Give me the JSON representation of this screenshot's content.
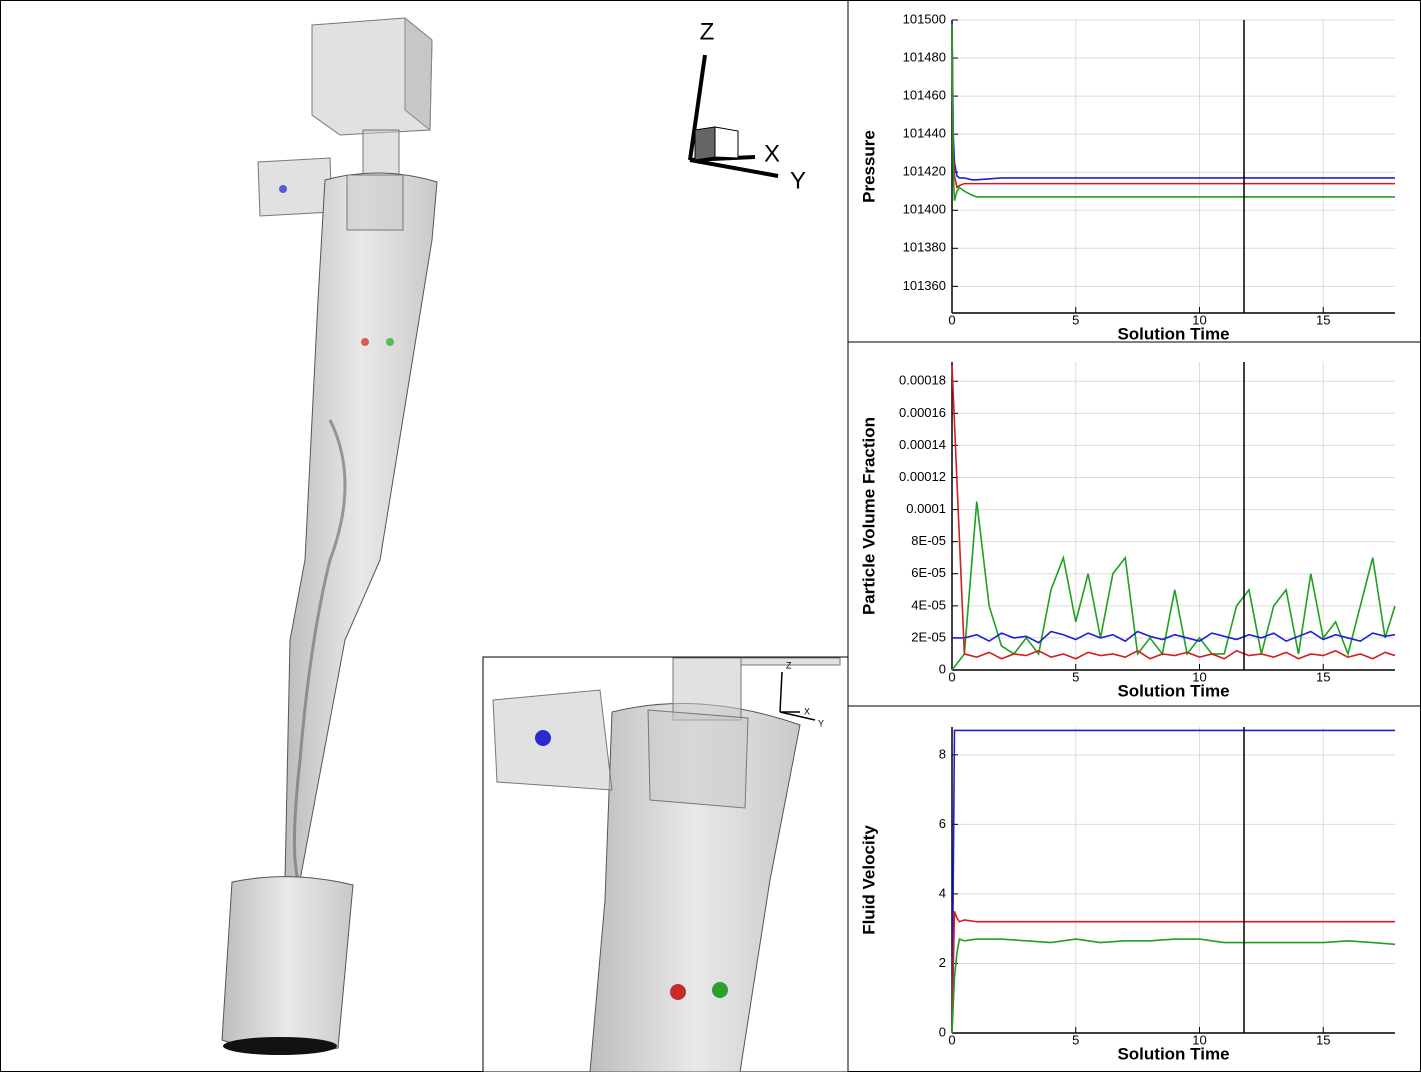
{
  "view_3d": {
    "axis_labels": [
      "Z",
      "X",
      "Y"
    ]
  },
  "chart_data": [
    {
      "type": "line",
      "ylabel": "Pressure",
      "xlabel": "Solution Time",
      "xlim": [
        0,
        17.9
      ],
      "xticks": [
        0,
        5,
        10,
        15
      ],
      "ylim": [
        101346,
        101500
      ],
      "yticks": [
        101360,
        101380,
        101400,
        101420,
        101440,
        101460,
        101480,
        101500
      ],
      "grid": true,
      "cursor_x": 11.8,
      "x": [
        0,
        0.05,
        0.1,
        0.2,
        0.3,
        0.5,
        0.8,
        1,
        2,
        3,
        4,
        5,
        6,
        7,
        8,
        9,
        10,
        11,
        12,
        13,
        14,
        15,
        16,
        17,
        17.9
      ],
      "series": [
        {
          "color": "#1f1fd0",
          "values": [
            101500,
            101440,
            101425,
            101418,
            101417,
            101417,
            101416,
            101416,
            101417,
            101417,
            101417,
            101417,
            101417,
            101417,
            101417,
            101417,
            101417,
            101417,
            101417,
            101417,
            101417,
            101417,
            101417,
            101417,
            101417
          ]
        },
        {
          "color": "#d01f1f",
          "values": [
            101495,
            101430,
            101418,
            101412,
            101413,
            101414,
            101414,
            101414,
            101414,
            101414,
            101414,
            101414,
            101414,
            101414,
            101414,
            101414,
            101414,
            101414,
            101414,
            101414,
            101414,
            101414,
            101414,
            101414,
            101414
          ]
        },
        {
          "color": "#1fa01f",
          "values": [
            101498,
            101420,
            101405,
            101410,
            101412,
            101410,
            101408,
            101407,
            101407,
            101407,
            101407,
            101407,
            101407,
            101407,
            101407,
            101407,
            101407,
            101407,
            101407,
            101407,
            101407,
            101407,
            101407,
            101407,
            101407
          ]
        }
      ]
    },
    {
      "type": "line",
      "ylabel": "Particle Volume Fraction",
      "xlabel": "Solution Time",
      "xlim": [
        0,
        17.9
      ],
      "xticks": [
        0,
        5,
        10,
        15
      ],
      "ylim": [
        0,
        0.000192
      ],
      "yticks": [
        0,
        {
          "value": 2e-05,
          "label": "2E-05"
        },
        {
          "value": 4e-05,
          "label": "4E-05"
        },
        {
          "value": 6e-05,
          "label": "6E-05"
        },
        {
          "value": 8e-05,
          "label": "8E-05"
        },
        0.0001,
        0.00012,
        0.00014,
        0.00016,
        0.00018
      ],
      "grid": true,
      "cursor_x": 11.8,
      "x": [
        0,
        0.5,
        1,
        1.5,
        2,
        2.5,
        3,
        3.5,
        4,
        4.5,
        5,
        5.5,
        6,
        6.5,
        7,
        7.5,
        8,
        8.5,
        9,
        9.5,
        10,
        10.5,
        11,
        11.5,
        12,
        12.5,
        13,
        13.5,
        14,
        14.5,
        15,
        15.5,
        16,
        16.5,
        17,
        17.5,
        17.9
      ],
      "series": [
        {
          "color": "#1fa01f",
          "values": [
            0,
            1e-05,
            0.000105,
            4e-05,
            1.5e-05,
            1e-05,
            2e-05,
            1e-05,
            5e-05,
            7e-05,
            3e-05,
            6e-05,
            2e-05,
            6e-05,
            7e-05,
            1e-05,
            2e-05,
            1e-05,
            5e-05,
            1e-05,
            2e-05,
            1e-05,
            1e-05,
            4e-05,
            5e-05,
            1e-05,
            4e-05,
            5e-05,
            1e-05,
            6e-05,
            2e-05,
            3e-05,
            1e-05,
            4e-05,
            7e-05,
            2e-05,
            4e-05
          ]
        },
        {
          "color": "#1f1fd0",
          "values": [
            2e-05,
            2e-05,
            2.2e-05,
            1.8e-05,
            2.3e-05,
            2e-05,
            2.1e-05,
            1.7e-05,
            2.4e-05,
            2.2e-05,
            1.9e-05,
            2.3e-05,
            2e-05,
            2.2e-05,
            1.8e-05,
            2.4e-05,
            2.1e-05,
            1.9e-05,
            2.2e-05,
            2e-05,
            1.8e-05,
            2.3e-05,
            2.1e-05,
            1.9e-05,
            2.2e-05,
            2e-05,
            2.3e-05,
            1.8e-05,
            2.1e-05,
            2.4e-05,
            1.9e-05,
            2.2e-05,
            2e-05,
            1.8e-05,
            2.3e-05,
            2.1e-05,
            2.2e-05
          ]
        },
        {
          "color": "#d01f1f",
          "values": [
            0.00019,
            1e-05,
            8e-06,
            1.1e-05,
            7e-06,
            1e-05,
            9e-06,
            1.2e-05,
            8e-06,
            1e-05,
            7e-06,
            1.1e-05,
            9e-06,
            1e-05,
            8e-06,
            1.2e-05,
            7e-06,
            1e-05,
            9e-06,
            1.1e-05,
            8e-06,
            1e-05,
            7e-06,
            1.2e-05,
            9e-06,
            1e-05,
            8e-06,
            1.1e-05,
            7e-06,
            1e-05,
            9e-06,
            1.2e-05,
            8e-06,
            1e-05,
            7e-06,
            1.1e-05,
            9e-06
          ]
        }
      ]
    },
    {
      "type": "line",
      "ylabel": "Fluid Velocity",
      "xlabel": "Solution Time",
      "xlim": [
        0,
        17.9
      ],
      "xticks": [
        0,
        5,
        10,
        15
      ],
      "ylim": [
        0,
        8.8
      ],
      "yticks": [
        0,
        2,
        4,
        6,
        8
      ],
      "grid": true,
      "cursor_x": 11.8,
      "x": [
        0,
        0.1,
        0.2,
        0.3,
        0.5,
        1,
        2,
        3,
        4,
        5,
        6,
        7,
        8,
        9,
        10,
        11,
        12,
        13,
        14,
        15,
        16,
        17,
        17.9
      ],
      "series": [
        {
          "color": "#1f1fd0",
          "values": [
            0,
            8.7,
            8.7,
            8.7,
            8.7,
            8.7,
            8.7,
            8.7,
            8.7,
            8.7,
            8.7,
            8.7,
            8.7,
            8.7,
            8.7,
            8.7,
            8.7,
            8.7,
            8.7,
            8.7,
            8.7,
            8.7,
            8.7
          ]
        },
        {
          "color": "#d01f1f",
          "values": [
            0,
            3.5,
            3.3,
            3.2,
            3.25,
            3.2,
            3.2,
            3.2,
            3.2,
            3.2,
            3.2,
            3.2,
            3.2,
            3.2,
            3.2,
            3.2,
            3.2,
            3.2,
            3.2,
            3.2,
            3.2,
            3.2,
            3.2
          ]
        },
        {
          "color": "#1fa01f",
          "values": [
            0,
            1.6,
            2.3,
            2.7,
            2.65,
            2.7,
            2.7,
            2.65,
            2.6,
            2.7,
            2.6,
            2.65,
            2.65,
            2.7,
            2.7,
            2.6,
            2.6,
            2.6,
            2.6,
            2.6,
            2.65,
            2.6,
            2.55
          ]
        }
      ]
    }
  ]
}
